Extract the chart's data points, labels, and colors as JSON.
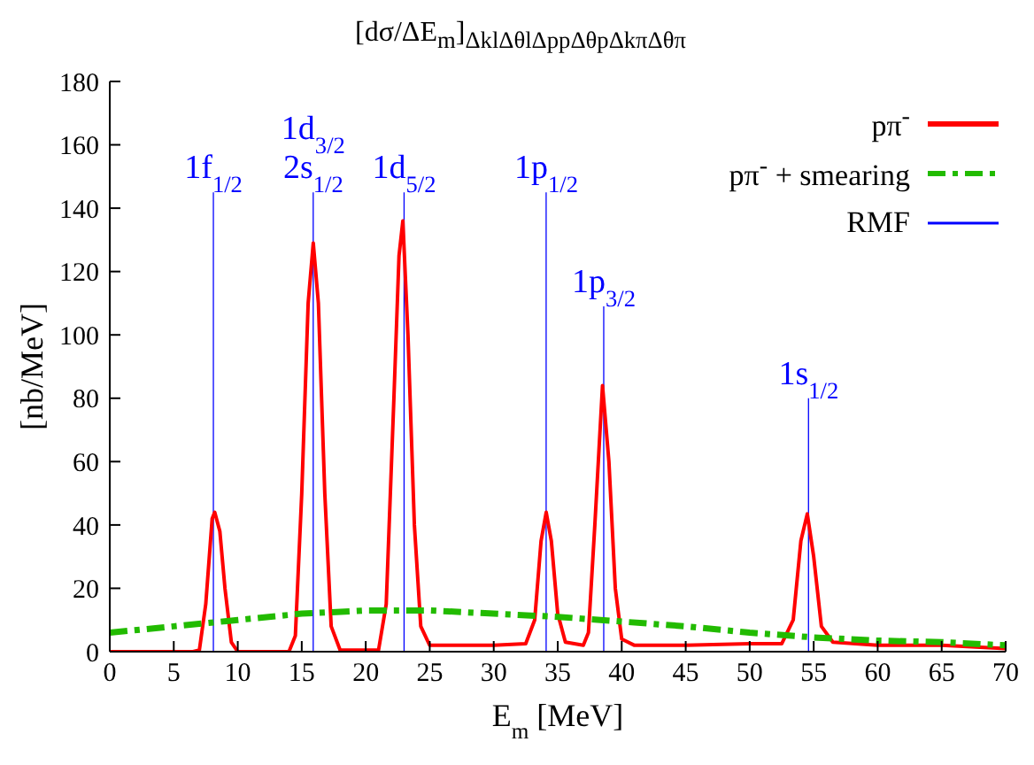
{
  "chart_data": {
    "type": "line",
    "title": "[dσ/ΔE$_{m}$]$_{ΔklΔθlΔppΔθpΔkπΔθπ}$",
    "xlabel": "E$_{m}$ [MeV]",
    "ylabel": "[nb/MeV]",
    "xlim": [
      0,
      70
    ],
    "xticks": [
      0,
      5,
      10,
      15,
      20,
      25,
      30,
      35,
      40,
      45,
      50,
      55,
      60,
      65,
      70
    ],
    "ylim": [
      0,
      180
    ],
    "yticks": [
      0,
      20,
      40,
      60,
      80,
      100,
      120,
      140,
      160,
      180
    ],
    "grid": false,
    "legend": "top right",
    "marker": "none",
    "series": [
      {
        "name": "pπ$^{-}$",
        "color": "#ff0000",
        "line_style": "solid",
        "x": [
          0,
          6.5,
          7,
          7.5,
          8,
          8.2,
          8.6,
          9,
          9.5,
          10,
          14,
          14.5,
          15,
          15.5,
          15.9,
          16.3,
          16.8,
          17.3,
          18,
          21,
          21.6,
          22.2,
          22.6,
          22.9,
          23.3,
          23.8,
          24.3,
          25,
          30,
          32.5,
          33.2,
          33.7,
          34.1,
          34.5,
          35,
          35.6,
          37,
          37.4,
          37.9,
          38.5,
          39,
          39.5,
          40,
          41,
          45,
          50,
          52.5,
          53.4,
          54,
          54.5,
          55,
          55.6,
          56.5,
          60,
          65,
          70
        ],
        "values": [
          0,
          0,
          0.5,
          15,
          42,
          44,
          38,
          20,
          3,
          0,
          0,
          5,
          50,
          110,
          129,
          110,
          50,
          8,
          0.5,
          0.5,
          15,
          80,
          125,
          136,
          100,
          40,
          8,
          2,
          2,
          2.5,
          10,
          35,
          44,
          35,
          12,
          3,
          2,
          6,
          40,
          84,
          60,
          20,
          4,
          2,
          2,
          2.5,
          2.5,
          10,
          35,
          43.5,
          30,
          8,
          3,
          2,
          2,
          1
        ]
      },
      {
        "name": "pπ$^{-}$ + smearing",
        "color": "#22bb00",
        "line_style": "dashed",
        "x": [
          0,
          5,
          10,
          15,
          20,
          25,
          30,
          35,
          40,
          45,
          50,
          55,
          60,
          65,
          70
        ],
        "values": [
          6,
          8,
          10,
          12,
          13,
          13,
          12,
          11,
          9.5,
          8,
          6,
          4.5,
          3.5,
          3,
          2
        ]
      },
      {
        "name": "RMF",
        "type": "bar",
        "color": "#0000ff",
        "x": [
          8.1,
          15.9,
          23,
          34.1,
          38.6,
          54.6
        ],
        "values": [
          145,
          145,
          145,
          145,
          109,
          80
        ]
      }
    ],
    "annotations": [
      {
        "text": "1f$_{1/2}$",
        "x": 8.1,
        "y": 145
      },
      {
        "text": "1d$_{3/2}$",
        "x": 15.9,
        "y": 145
      },
      {
        "text": "2s$_{1/2}$",
        "x": 15.9,
        "y": 145
      },
      {
        "text": "1d$_{5/2}$",
        "x": 23,
        "y": 145
      },
      {
        "text": "1p$_{1/2}$",
        "x": 34.1,
        "y": 145
      },
      {
        "text": "1p$_{3/2}$",
        "x": 38.6,
        "y": 109
      },
      {
        "text": "1s$_{1/2}$",
        "x": 54.6,
        "y": 80
      }
    ]
  }
}
